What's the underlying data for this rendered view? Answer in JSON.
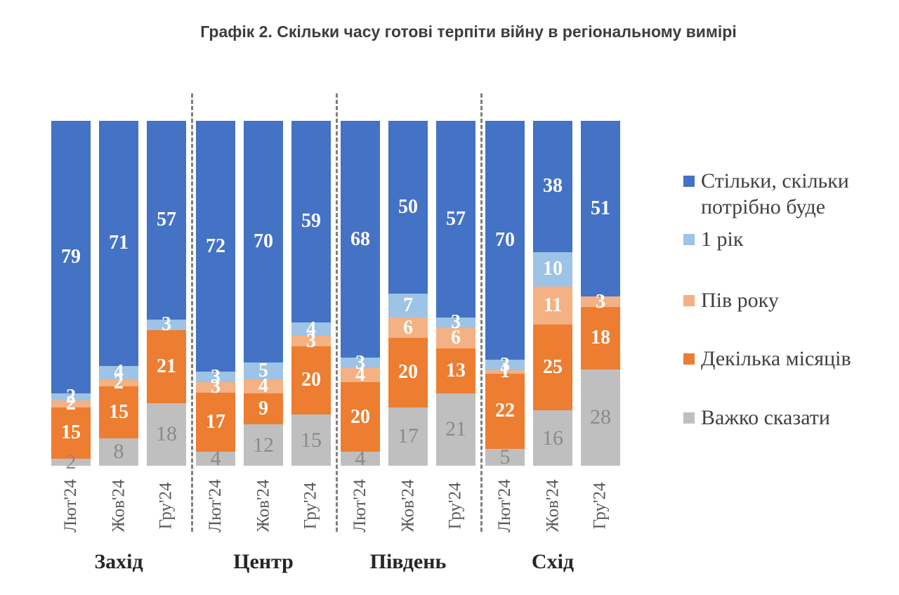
{
  "title": "Графік 2. Скільки часу готові терпіти війну в регіональному вимірі",
  "chart_data": {
    "type": "bar",
    "variant": "100%-stacked-column",
    "legend_position": "right",
    "grid": false,
    "group_labels": [
      "Захід",
      "Центр",
      "Південь",
      "Схід"
    ],
    "x_labels": [
      "Лют'24",
      "Жов'24",
      "Гру'24"
    ],
    "stack_order_bottom_to_top": [
      "Важко сказати",
      "Декілька місяців",
      "Пів року",
      "1 рік",
      "Стільки, скільки потрібно буде"
    ],
    "series": [
      {
        "name": "Стільки, скільки потрібно буде",
        "color": "#4472C4",
        "label_color": "#FFFFFF",
        "values": [
          [
            79,
            71,
            57
          ],
          [
            72,
            70,
            59
          ],
          [
            68,
            50,
            57
          ],
          [
            70,
            38,
            51
          ]
        ]
      },
      {
        "name": "1 рік",
        "color": "#9DC3E6",
        "label_color": "#FFFFFF",
        "values": [
          [
            2,
            4,
            3
          ],
          [
            3,
            5,
            4
          ],
          [
            3,
            7,
            3
          ],
          [
            3,
            10,
            0
          ]
        ]
      },
      {
        "name": "Пів року",
        "color": "#F4B183",
        "label_color": "#FFFFFF",
        "values": [
          [
            2,
            2,
            0
          ],
          [
            3,
            4,
            3
          ],
          [
            4,
            6,
            6
          ],
          [
            1,
            11,
            3
          ]
        ]
      },
      {
        "name": "Декілька місяців",
        "color": "#ED7D31",
        "label_color": "#FFFFFF",
        "values": [
          [
            15,
            15,
            21
          ],
          [
            17,
            9,
            20
          ],
          [
            20,
            20,
            13
          ],
          [
            22,
            25,
            18
          ]
        ]
      },
      {
        "name": "Важко сказати",
        "color": "#BFBFBF",
        "label_color": "#8A8A8A",
        "values": [
          [
            2,
            8,
            18
          ],
          [
            4,
            12,
            15
          ],
          [
            4,
            17,
            21
          ],
          [
            5,
            16,
            28
          ]
        ]
      }
    ]
  }
}
